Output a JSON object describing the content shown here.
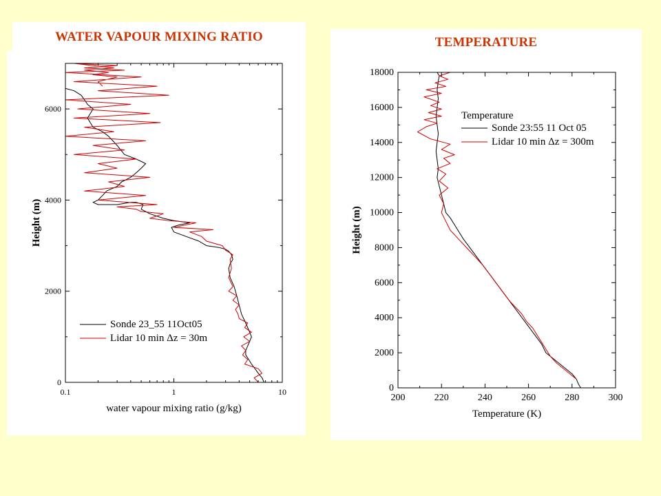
{
  "slide": {
    "left_title": "WATER VAPOUR MIXING RATIO",
    "right_title": "TEMPERATURE",
    "title_color": "#cc3300",
    "background": "#ffffcc"
  },
  "chart_data": [
    {
      "type": "line",
      "title": "WATER VAPOUR MIXING RATIO",
      "xlabel": "water vapour mixing ratio (g/kg)",
      "ylabel": "Height (m)",
      "xscale": "log",
      "xlim": [
        0.1,
        10
      ],
      "ylim": [
        0,
        7000
      ],
      "xticks": [
        0.1,
        1,
        10
      ],
      "xtick_labels": [
        "0.1",
        "1",
        "10"
      ],
      "yticks": [
        0,
        2000,
        4000,
        6000
      ],
      "ytick_labels": [
        "0",
        "2000",
        "4000",
        "6000"
      ],
      "legend": "lower-right",
      "grid": false,
      "series": [
        {
          "name": "Sonde 23_55 11Oct05",
          "color": "#000000",
          "x": [
            6.8,
            6.5,
            6.0,
            5.6,
            5.2,
            4.9,
            4.6,
            4.6,
            4.8,
            5.0,
            5.2,
            5.0,
            4.6,
            4.2,
            4.0,
            3.8,
            3.6,
            3.3,
            3.2,
            3.3,
            3.5,
            3.4,
            3.2,
            3.0,
            2.6,
            2.0,
            1.7,
            1.3,
            1.0,
            0.95,
            1.1,
            1.4,
            1.0,
            0.8,
            0.6,
            0.5,
            0.52,
            0.45,
            0.4,
            0.3,
            0.2,
            0.18,
            0.2,
            0.22,
            0.24,
            0.3,
            0.33,
            0.4,
            0.45,
            0.5,
            0.55,
            0.45,
            0.35,
            0.3,
            0.25,
            0.22,
            0.18,
            0.16,
            0.18,
            0.16,
            0.15,
            0.14,
            0.12,
            0.1
          ],
          "y": [
            0,
            100,
            200,
            300,
            400,
            500,
            600,
            700,
            800,
            900,
            1000,
            1100,
            1300,
            1500,
            1700,
            1900,
            2100,
            2300,
            2500,
            2600,
            2700,
            2800,
            2880,
            2920,
            2960,
            3000,
            3100,
            3200,
            3300,
            3400,
            3450,
            3500,
            3550,
            3600,
            3700,
            3800,
            3900,
            3950,
            3950,
            3900,
            3900,
            3950,
            4000,
            4100,
            4200,
            4300,
            4400,
            4500,
            4600,
            4700,
            4800,
            4900,
            5000,
            5200,
            5400,
            5500,
            5600,
            5800,
            6000,
            6100,
            6200,
            6300,
            6400,
            6450
          ]
        },
        {
          "name": "Lidar 10 min Δz = 30m",
          "color": "#cc0000",
          "x": [
            6.0,
            5.5,
            6.5,
            6.0,
            4.5,
            4.8,
            4.3,
            4.6,
            4.2,
            5.0,
            4.4,
            5.2,
            4.5,
            4.8,
            4.0,
            3.9,
            3.7,
            4.0,
            3.5,
            3.8,
            3.2,
            3.5,
            3.2,
            3.4,
            3.3,
            3.5,
            3.0,
            2.8,
            2.0,
            1.8,
            1.4,
            2.3,
            1.0,
            1.6,
            0.9,
            0.6,
            0.8,
            0.5,
            0.45,
            0.3,
            0.7,
            0.2,
            0.55,
            0.15,
            0.35,
            0.25,
            0.6,
            0.15,
            0.3,
            0.2,
            0.45,
            0.12,
            0.35,
            0.18,
            0.55,
            0.1,
            0.28,
            0.15,
            0.75,
            0.12,
            0.6,
            0.13,
            0.4,
            0.1,
            0.9,
            0.2,
            0.7,
            0.12,
            0.5,
            0.1,
            0.35,
            0.15,
            0.3,
            0.12,
            0.28,
            0.15,
            0.25,
            0.18,
            0.3,
            0.2,
            0.22
          ],
          "y": [
            0,
            100,
            200,
            300,
            400,
            500,
            600,
            700,
            800,
            900,
            1000,
            1100,
            1200,
            1300,
            1400,
            1500,
            1600,
            1700,
            1800,
            1900,
            2000,
            2100,
            2300,
            2500,
            2700,
            2800,
            2900,
            3000,
            3100,
            3200,
            3300,
            3350,
            3400,
            3500,
            3550,
            3600,
            3700,
            3750,
            3800,
            3850,
            3900,
            4000,
            4100,
            4200,
            4300,
            4400,
            4500,
            4600,
            4700,
            4800,
            4900,
            5000,
            5100,
            5200,
            5300,
            5400,
            5500,
            5600,
            5700,
            5800,
            5900,
            6000,
            6100,
            6200,
            6300,
            6400,
            6500,
            6600,
            6700,
            6800,
            6850,
            6900,
            6950,
            7000,
            6900,
            6850,
            6800,
            6750,
            6700,
            6600,
            6500
          ]
        }
      ]
    },
    {
      "type": "line",
      "title": "TEMPERATURE",
      "xlabel": "Temperature (K)",
      "ylabel": "Height (m)",
      "xlim": [
        200,
        300
      ],
      "ylim": [
        0,
        18000
      ],
      "xticks": [
        200,
        220,
        240,
        260,
        280,
        300
      ],
      "xtick_labels": [
        "200",
        "220",
        "240",
        "260",
        "280",
        "300"
      ],
      "yticks": [
        0,
        2000,
        4000,
        6000,
        8000,
        10000,
        12000,
        14000,
        16000,
        18000
      ],
      "ytick_labels": [
        "0",
        "2000",
        "4000",
        "6000",
        "8000",
        "10000",
        "12000",
        "14000",
        "16000",
        "18000"
      ],
      "legend": "top-right",
      "legend_title": "Temperature",
      "grid": false,
      "series": [
        {
          "name": "Sonde 23:55 11 Oct 05",
          "color": "#000000",
          "x": [
            284,
            283,
            282,
            280,
            277,
            274,
            271,
            268,
            266,
            263,
            260,
            257,
            254,
            251,
            248,
            245,
            242,
            239,
            236,
            233,
            230,
            228,
            226,
            224,
            222,
            221,
            220,
            219,
            218,
            218.5,
            218,
            217.5,
            218,
            218.5,
            218,
            217.5,
            218,
            218.5,
            218,
            218.5,
            219,
            218
          ],
          "y": [
            0,
            200,
            500,
            800,
            1100,
            1400,
            1700,
            2000,
            2500,
            3000,
            3500,
            4000,
            4500,
            5000,
            5500,
            6000,
            6500,
            7000,
            7500,
            8000,
            8500,
            8900,
            9300,
            9700,
            10000,
            10500,
            11000,
            11500,
            12000,
            12500,
            13000,
            13500,
            14000,
            14500,
            15000,
            15500,
            16000,
            16500,
            17000,
            17500,
            17800,
            18000
          ]
        },
        {
          "name": "Lidar 10 min Δz = 300m",
          "color": "#cc0000",
          "x": [
            282,
            279,
            276,
            273,
            270,
            268,
            266,
            264,
            262,
            259,
            257,
            254,
            251,
            248,
            245,
            242,
            239,
            236,
            233,
            230,
            227,
            224,
            222,
            220,
            221,
            219,
            223,
            219,
            222,
            218,
            224,
            221,
            226,
            220,
            224,
            215,
            209,
            213,
            218,
            212,
            220,
            214,
            220,
            215,
            219,
            212,
            220,
            213,
            222,
            217,
            223,
            219,
            224
          ],
          "y": [
            500,
            800,
            1100,
            1400,
            1800,
            2200,
            2600,
            3000,
            3400,
            3800,
            4200,
            4600,
            5000,
            5500,
            6000,
            6500,
            7000,
            7400,
            7800,
            8200,
            8600,
            9000,
            9500,
            10000,
            10500,
            11000,
            11400,
            11800,
            12200,
            12500,
            12800,
            13100,
            13300,
            13600,
            13900,
            14200,
            14600,
            14900,
            15100,
            15300,
            15500,
            15700,
            15900,
            16100,
            16300,
            16600,
            16800,
            17000,
            17200,
            17400,
            17600,
            17800,
            18000
          ]
        }
      ]
    }
  ]
}
